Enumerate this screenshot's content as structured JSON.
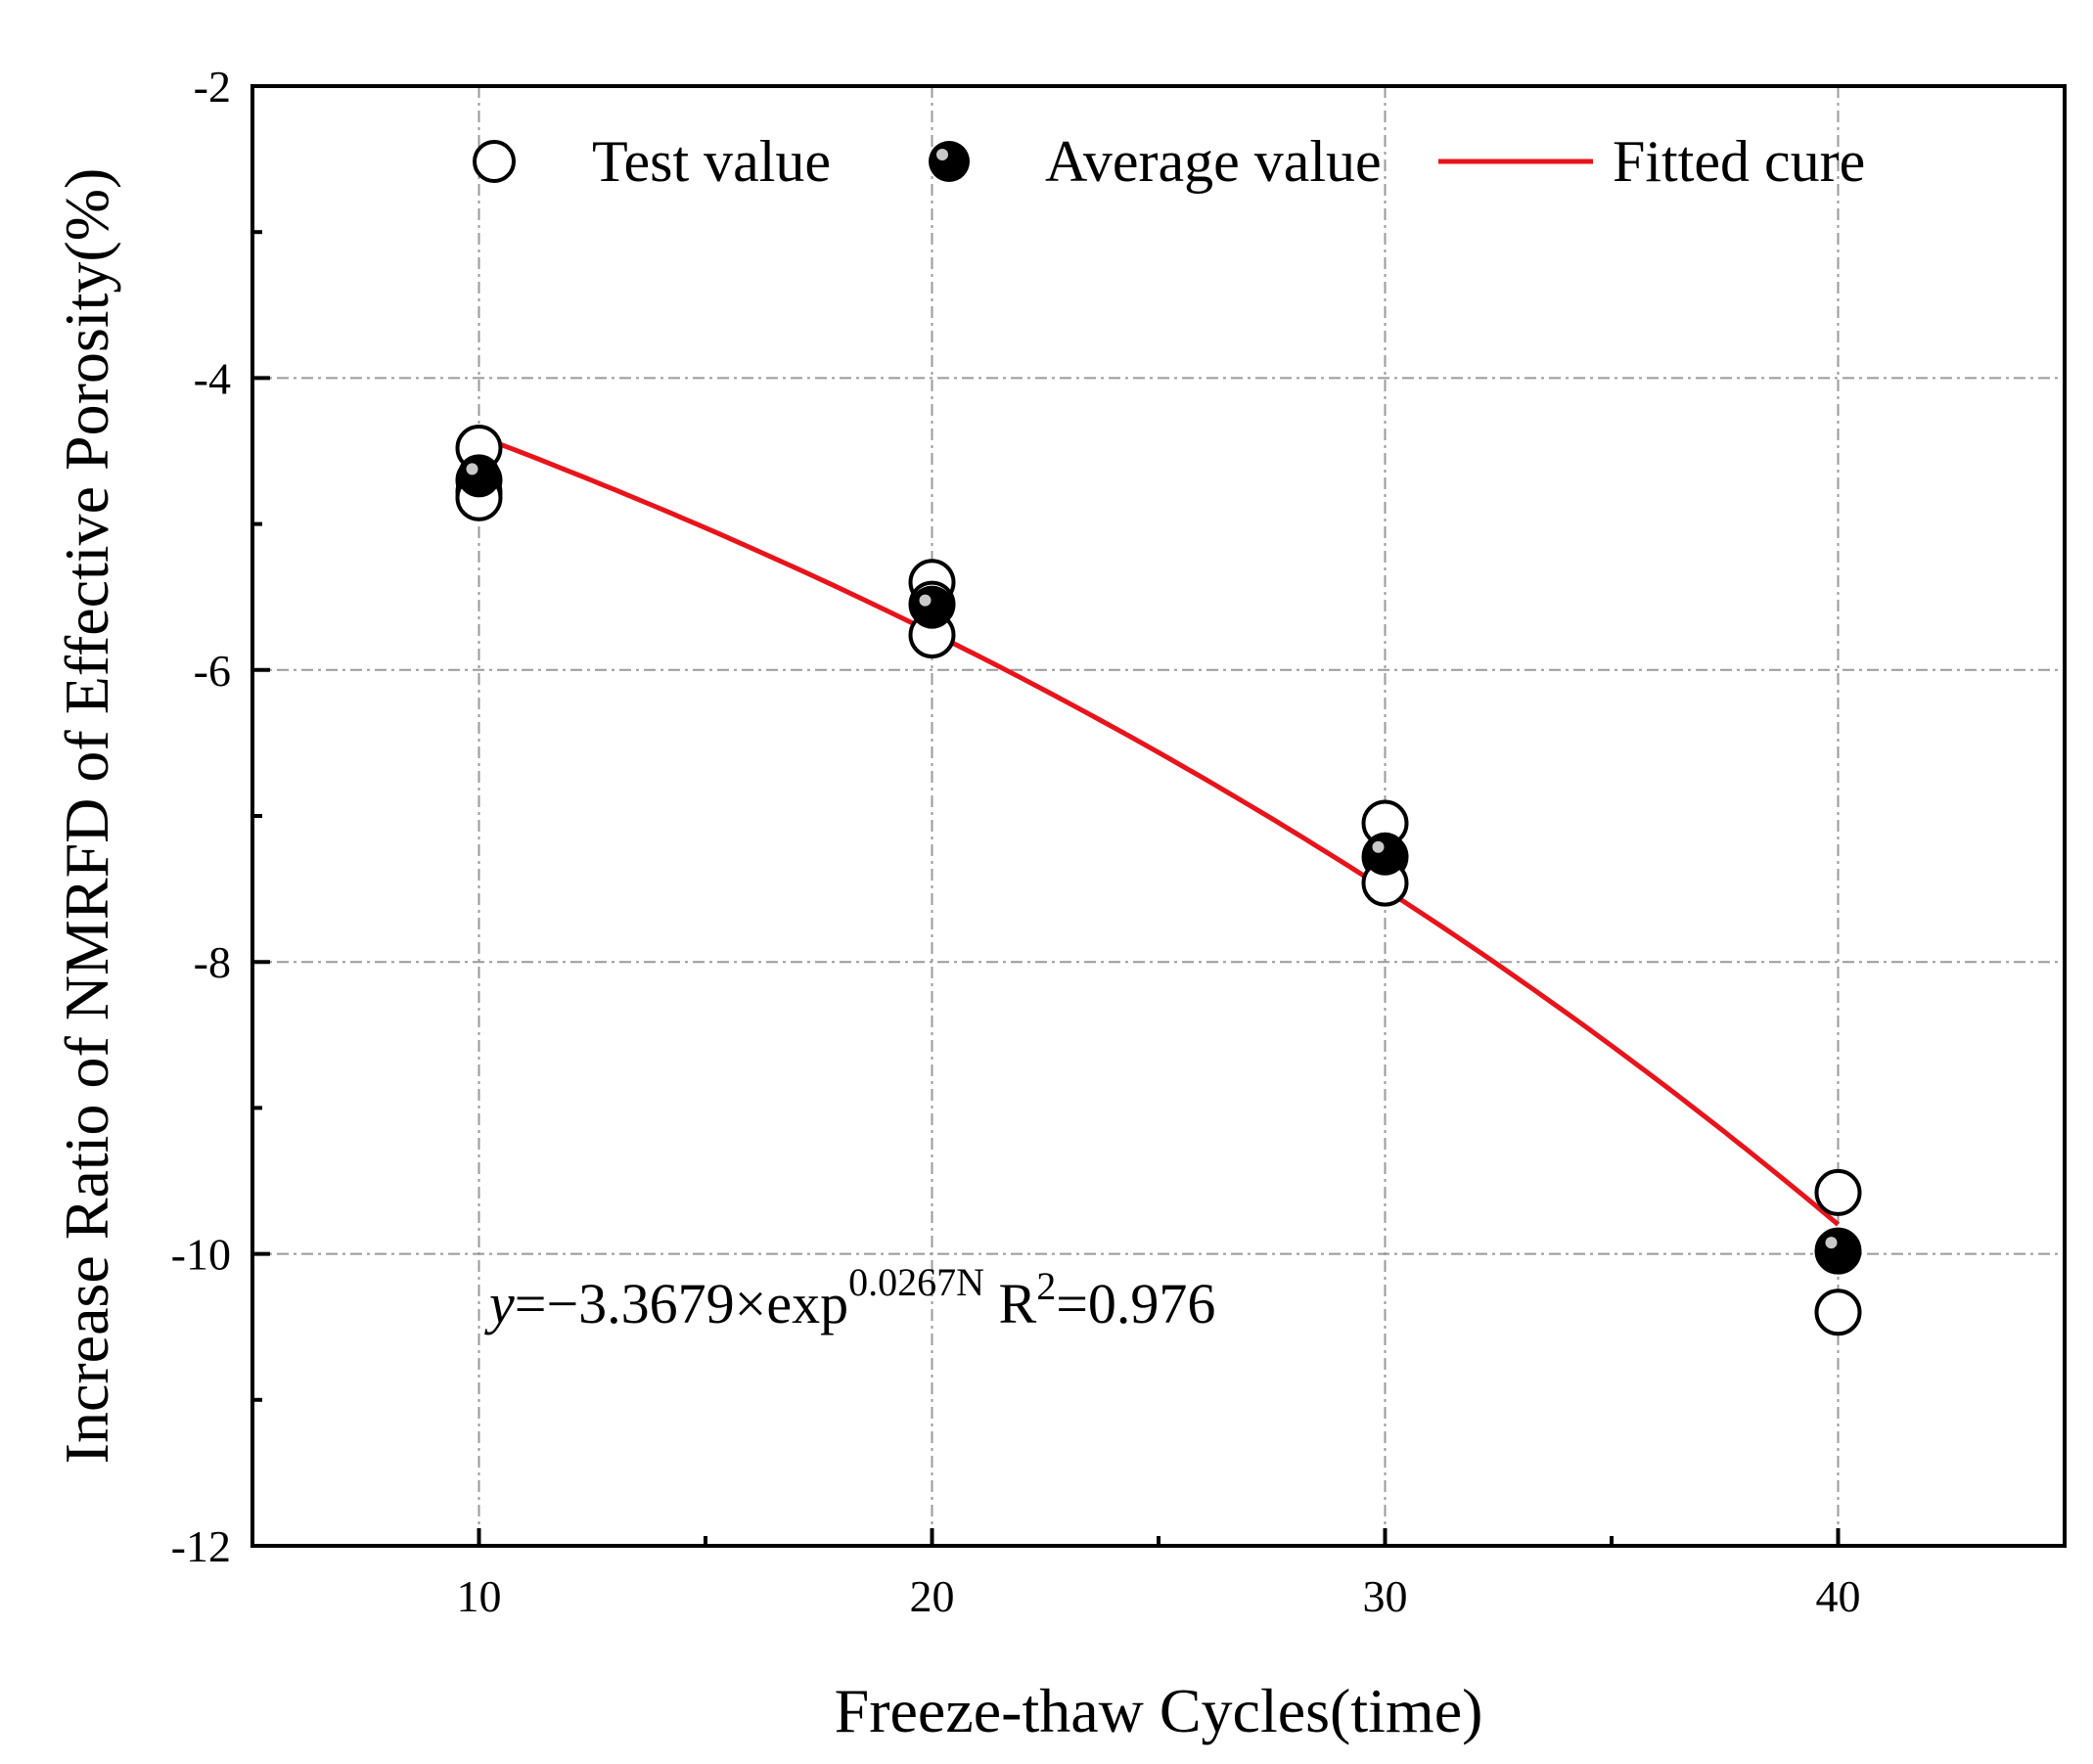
{
  "chart_data": {
    "type": "scatter",
    "xlabel": "Freeze-thaw Cycles(time)",
    "ylabel": "Increase Ratio of NMRFD of Effective Porosity(%)",
    "xlim": [
      5,
      45
    ],
    "ylim": [
      -12,
      -2
    ],
    "x_ticks": [
      10,
      20,
      30,
      40
    ],
    "y_ticks": [
      -2,
      -4,
      -6,
      -8,
      -10,
      -12
    ],
    "x_tick_labels": [
      "10",
      "20",
      "30",
      "40"
    ],
    "y_tick_labels": [
      "-2",
      "-4",
      "-6",
      "-8",
      "-10",
      "-12"
    ],
    "grid": true,
    "legend_position": "top",
    "series": [
      {
        "name": "Test value",
        "marker": "open-circle",
        "points": [
          [
            10,
            -4.48
          ],
          [
            10,
            -4.7
          ],
          [
            10,
            -4.78
          ],
          [
            10,
            -4.82
          ],
          [
            20,
            -5.4
          ],
          [
            20,
            -5.55
          ],
          [
            20,
            -5.76
          ],
          [
            30,
            -7.05
          ],
          [
            30,
            -7.28
          ],
          [
            30,
            -7.46
          ],
          [
            40,
            -9.58
          ],
          [
            40,
            -9.98
          ],
          [
            40,
            -10.4
          ]
        ]
      },
      {
        "name": "Average value",
        "marker": "filled-circle",
        "points": [
          [
            10,
            -4.67
          ],
          [
            20,
            -5.57
          ],
          [
            30,
            -7.26
          ],
          [
            40,
            -9.97
          ]
        ]
      },
      {
        "name": "Fitted cure",
        "marker": "line",
        "color": "#e8141b",
        "equation": {
          "a": -3.3679,
          "b": 0.0267
        },
        "x_range": [
          10,
          40
        ]
      }
    ],
    "annotation": {
      "y_var": "y",
      "equation_main": "=−3.3679×exp",
      "exponent": "0.0267N",
      "r_prefix": " R",
      "r_sup": "2",
      "r_value": "=0.976"
    }
  }
}
